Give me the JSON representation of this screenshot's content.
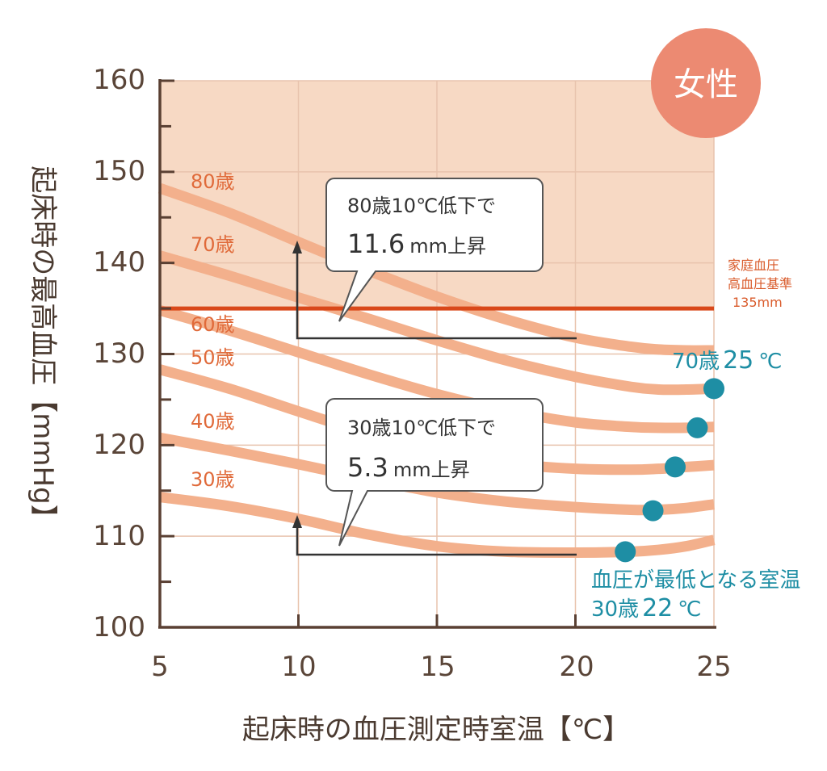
{
  "chart_data": {
    "type": "line",
    "xlabel": "起床時の血圧測定時室温【℃】",
    "ylabel": "起床時の最高血圧【mmHg】",
    "xlim": [
      5,
      25
    ],
    "ylim": [
      100,
      160
    ],
    "x_ticks": [
      "5",
      "10",
      "15",
      "20",
      "25"
    ],
    "y_ticks": [
      "100",
      "110",
      "120",
      "130",
      "140",
      "150",
      "160"
    ],
    "badge": "女性",
    "x": [
      5,
      7.5,
      10,
      12.5,
      15,
      17.5,
      20,
      22,
      23,
      24,
      25
    ],
    "series": [
      {
        "name": "80歳",
        "values": [
          148.2,
          145.5,
          142.3,
          139.2,
          136.3,
          133.8,
          131.8,
          130.8,
          130.5,
          130.4,
          130.4
        ]
      },
      {
        "name": "70歳",
        "values": [
          140.8,
          138.6,
          136.2,
          133.9,
          131.5,
          129.3,
          127.5,
          126.4,
          126.1,
          126.1,
          126.2
        ]
      },
      {
        "name": "60歳",
        "values": [
          134.8,
          132.6,
          130.2,
          127.8,
          125.6,
          123.8,
          122.5,
          122.0,
          121.9,
          121.9,
          122.0
        ]
      },
      {
        "name": "50歳",
        "values": [
          128.3,
          126.2,
          123.7,
          121.3,
          119.3,
          118.0,
          117.4,
          117.3,
          117.4,
          117.6,
          117.8
        ]
      },
      {
        "name": "40歳",
        "values": [
          120.8,
          119.4,
          117.9,
          116.3,
          114.8,
          113.8,
          113.2,
          112.9,
          112.9,
          113.1,
          113.5
        ]
      },
      {
        "name": "30歳",
        "values": [
          114.3,
          113.3,
          111.9,
          110.2,
          108.9,
          108.3,
          108.2,
          108.3,
          108.5,
          108.9,
          109.6
        ]
      }
    ],
    "reference_line": {
      "value": 135,
      "label_lines": [
        "家庭血圧",
        "高血圧基準",
        "135mm"
      ],
      "color": "#d9481a"
    },
    "shaded_region": {
      "from": 135,
      "to": 160,
      "color": "#f7d9c4"
    },
    "min_points": [
      {
        "x": 21.8,
        "y": 108.3
      },
      {
        "x": 22.8,
        "y": 112.8
      },
      {
        "x": 23.6,
        "y": 117.6
      },
      {
        "x": 24.4,
        "y": 121.9
      },
      {
        "x": 25.0,
        "y": 126.2
      }
    ],
    "annotations": {
      "callout_80": {
        "line1": "80歳10℃低下で",
        "value": "11.6",
        "unit": "mm上昇"
      },
      "callout_30": {
        "line1": "30歳10℃低下で",
        "value": "5.3",
        "unit": "mm上昇"
      },
      "teal_70": {
        "prefix": "70歳",
        "temp": "25",
        "unit": "℃"
      },
      "teal_min": {
        "line1": "血圧が最低となる室温",
        "prefix": "30歳",
        "temp": "22",
        "unit": "℃"
      }
    },
    "colors": {
      "curve": "#f3b08c",
      "axis": "#5a4033",
      "grid": "#e8c3ad",
      "badge": "#ec8a72",
      "point": "#1e8ea4",
      "label": "#e06a3a"
    }
  }
}
